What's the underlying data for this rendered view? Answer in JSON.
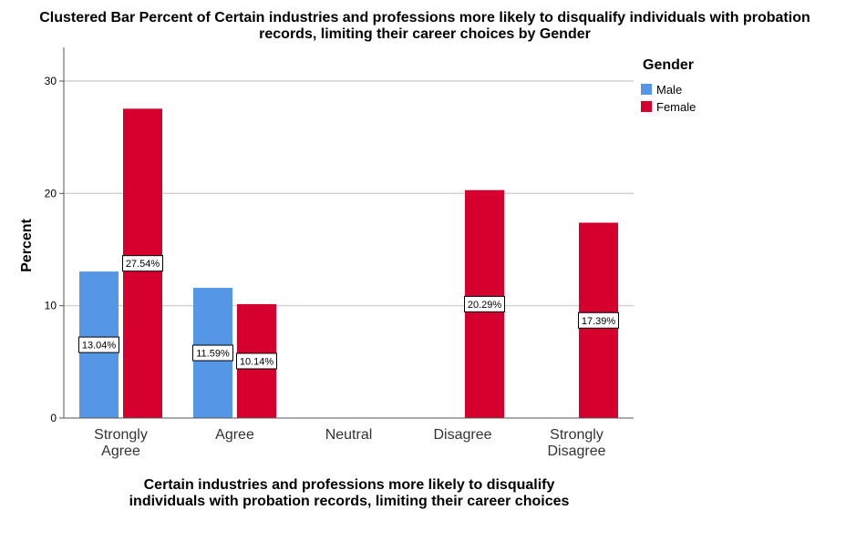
{
  "chart_data": {
    "type": "bar",
    "title_lines": [
      "Clustered Bar Percent of Certain industries and professions more likely to disqualify individuals with probation",
      "records, limiting their career choices by Gender"
    ],
    "ylabel": "Percent",
    "xlabel_lines": [
      "Certain industries and professions more likely to disqualify",
      "individuals with probation records, limiting their career choices"
    ],
    "categories": [
      [
        "Strongly",
        "Agree"
      ],
      [
        "Agree"
      ],
      [
        "Neutral"
      ],
      [
        "Disagree"
      ],
      [
        "Strongly",
        "Disagree"
      ]
    ],
    "ylim": [
      0,
      33
    ],
    "yticks": [
      0,
      10,
      20,
      30
    ],
    "grid": true,
    "legend": {
      "title": "Gender",
      "placement": "top-right"
    },
    "series": [
      {
        "name": "Male",
        "color": "#5596e6",
        "values": [
          13.04,
          11.59,
          null,
          null,
          null
        ],
        "labels": [
          "13.04%",
          "11.59%",
          null,
          null,
          null
        ]
      },
      {
        "name": "Female",
        "color": "#d6002f",
        "values": [
          27.54,
          10.14,
          null,
          20.29,
          17.39
        ],
        "labels": [
          "27.54%",
          "10.14%",
          null,
          "20.29%",
          "17.39%"
        ]
      }
    ]
  }
}
